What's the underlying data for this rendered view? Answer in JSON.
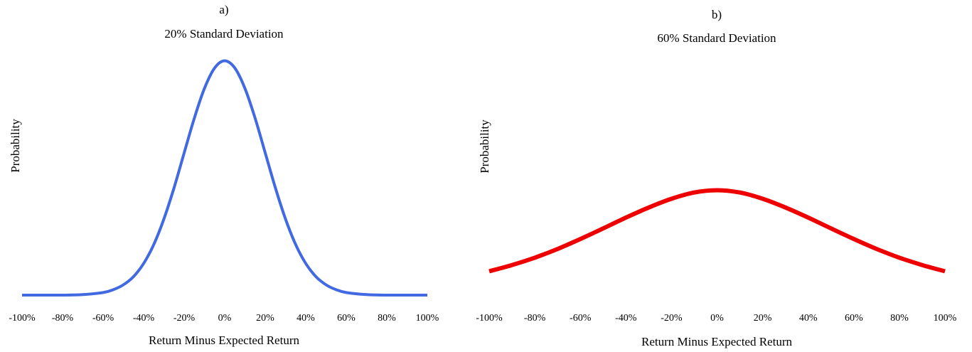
{
  "chart_data": [
    {
      "type": "line",
      "panel_label": "a)",
      "title": "20% Standard Deviation",
      "xlabel": "Return Minus Expected Return",
      "ylabel": "Probability",
      "xlim": [
        -1.0,
        1.0
      ],
      "ylim": [
        0,
        1.05
      ],
      "x_ticks": [
        "-100%",
        "-80%",
        "-60%",
        "-40%",
        "-20%",
        "0%",
        "20%",
        "40%",
        "60%",
        "80%",
        "100%"
      ],
      "grid": false,
      "series": [
        {
          "color": "#4169e1",
          "x": [
            -1.0,
            -0.9,
            -0.8,
            -0.7,
            -0.6,
            -0.55,
            -0.5,
            -0.45,
            -0.4,
            -0.35,
            -0.3,
            -0.25,
            -0.2,
            -0.15,
            -0.1,
            -0.05,
            0.0,
            0.05,
            0.1,
            0.15,
            0.2,
            0.25,
            0.3,
            0.35,
            0.4,
            0.45,
            0.5,
            0.55,
            0.6,
            0.7,
            0.8,
            0.9,
            1.0
          ],
          "y": [
            0.0,
            0.0,
            0.0,
            0.002,
            0.011,
            0.023,
            0.044,
            0.079,
            0.135,
            0.216,
            0.325,
            0.458,
            0.607,
            0.755,
            0.882,
            0.969,
            1.0,
            0.969,
            0.882,
            0.755,
            0.607,
            0.458,
            0.325,
            0.216,
            0.135,
            0.079,
            0.044,
            0.023,
            0.011,
            0.002,
            0.0,
            0.0,
            0.0
          ]
        }
      ]
    },
    {
      "type": "line",
      "panel_label": "b)",
      "title": "60% Standard Deviation",
      "xlabel": "Return Minus Expected Return",
      "ylabel": "Probability",
      "xlim": [
        -1.0,
        1.0
      ],
      "ylim": [
        0,
        1.05
      ],
      "x_ticks": [
        "-100%",
        "-80%",
        "-60%",
        "-40%",
        "-20%",
        "0%",
        "20%",
        "40%",
        "60%",
        "80%",
        "100%"
      ],
      "grid": false,
      "series": [
        {
          "color": "#ee0000",
          "x": [
            -1.0,
            -0.9,
            -0.8,
            -0.7,
            -0.6,
            -0.5,
            -0.4,
            -0.3,
            -0.2,
            -0.1,
            0.0,
            0.1,
            0.2,
            0.3,
            0.4,
            0.5,
            0.6,
            0.7,
            0.8,
            0.9,
            1.0
          ],
          "y": [
            0.085,
            0.112,
            0.144,
            0.182,
            0.225,
            0.271,
            0.318,
            0.362,
            0.4,
            0.427,
            0.437,
            0.427,
            0.4,
            0.362,
            0.318,
            0.271,
            0.225,
            0.182,
            0.144,
            0.112,
            0.085
          ]
        }
      ]
    }
  ]
}
